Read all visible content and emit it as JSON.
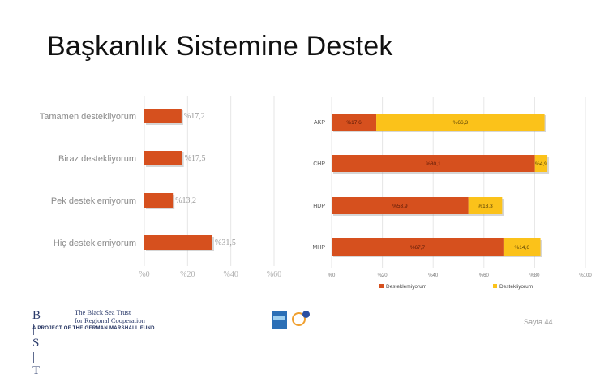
{
  "title": "Başkanlık Sistemine Destek",
  "chart_data": [
    {
      "type": "bar",
      "orientation": "horizontal",
      "categories": [
        "Tamamen destekliyorum",
        "Biraz destekliyorum",
        "Pek desteklemiyorum",
        "Hiç desteklemiyorum"
      ],
      "values": [
        17.2,
        17.5,
        13.2,
        31.5
      ],
      "value_labels": [
        "%17,2",
        "%17,5",
        "%13,2",
        "%31,5"
      ],
      "xlim": [
        0,
        60
      ],
      "xticks": [
        "%0",
        "%20",
        "%40",
        "%60"
      ],
      "grid": true,
      "color": "#d6501e"
    },
    {
      "type": "bar",
      "orientation": "horizontal",
      "stacked": true,
      "categories": [
        "AKP",
        "CHP",
        "HDP",
        "MHP"
      ],
      "series": [
        {
          "name": "Desteklemiyorum",
          "color": "#d6501e",
          "values": [
            17.6,
            80.1,
            53.9,
            67.7
          ],
          "labels": [
            "%17,6",
            "%80,1",
            "%53,9",
            "%67,7"
          ]
        },
        {
          "name": "Destekliyorum",
          "color": "#fbc21a",
          "values": [
            66.3,
            4.9,
            13.3,
            14.6
          ],
          "labels": [
            "%66,3",
            "%4,9",
            "%13,3",
            "%14,6"
          ]
        }
      ],
      "xlim": [
        0,
        100
      ],
      "xticks": [
        "%0",
        "%20",
        "%40",
        "%60",
        "%80",
        "%100"
      ],
      "grid": true,
      "legend": "bottom"
    }
  ],
  "footer": {
    "logo_letters": "B | S | T",
    "org_line1": "The Black Sea Trust",
    "org_line2": "for Regional Cooperation",
    "org_line3": "A PROJECT OF THE GERMAN MARSHALL FUND",
    "page_label": "Sayfa 44"
  }
}
